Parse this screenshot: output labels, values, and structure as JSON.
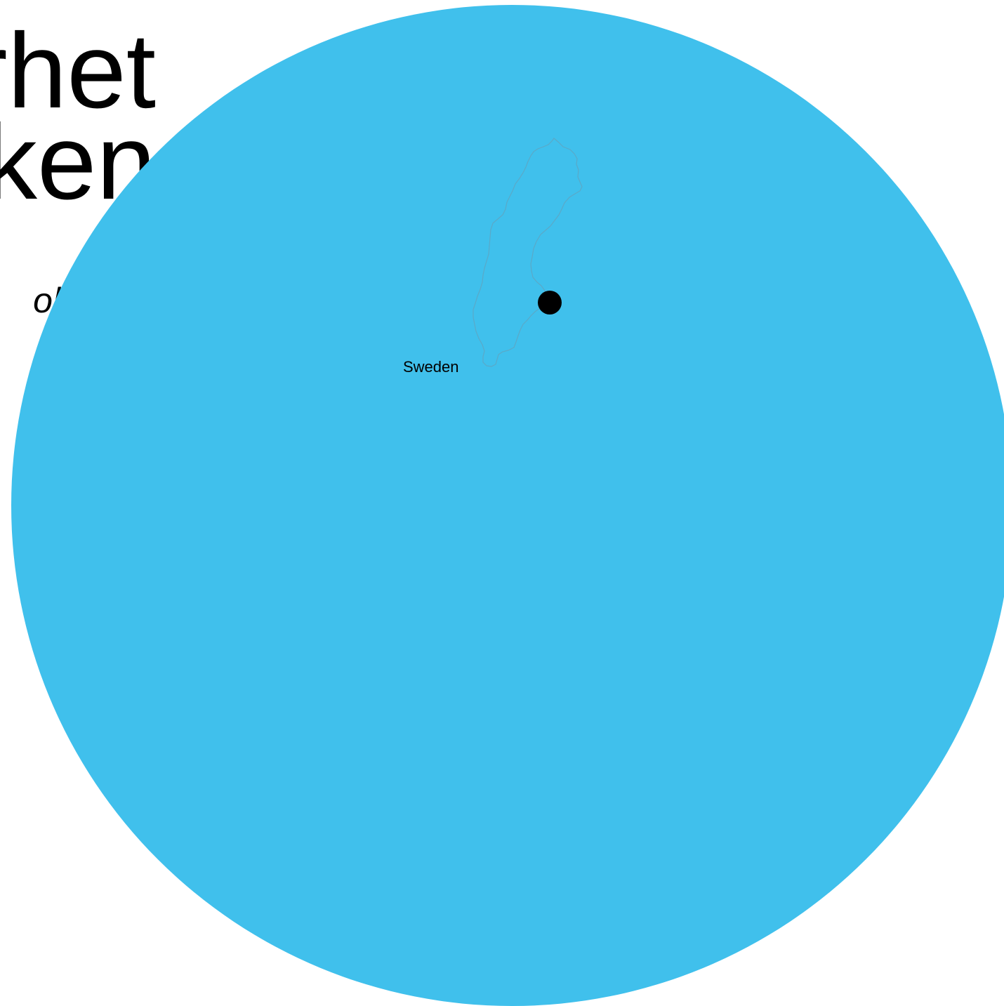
{
  "headline": {
    "line1": "rhet",
    "line2": "ken"
  },
  "subline": "olutions -",
  "map": {
    "country_label": "Sweden",
    "globe_color": "#40C0EC",
    "country_outline_color": "#5aa9c8",
    "marker_color": "#000000"
  }
}
